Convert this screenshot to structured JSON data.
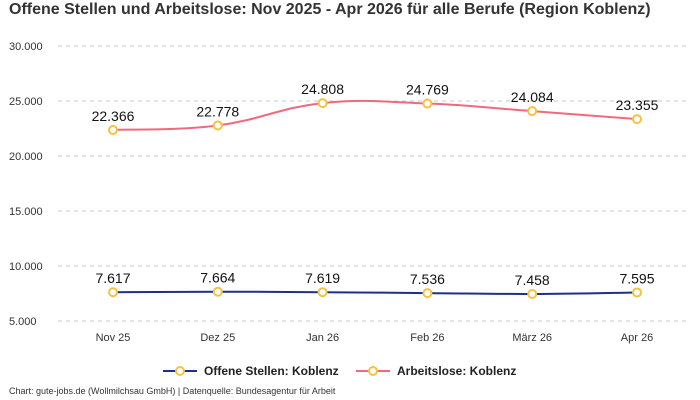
{
  "chart_data": {
    "type": "line",
    "title": "Offene Stellen und Arbeitslose: Nov 2025 - Apr 2026 für alle Berufe (Region Koblenz)",
    "categories": [
      "Nov 25",
      "Dez 25",
      "Jan 26",
      "Feb 26",
      "März 26",
      "Apr 26"
    ],
    "series": [
      {
        "name": "Offene Stellen: Koblenz",
        "values": [
          7617,
          7664,
          7619,
          7536,
          7458,
          7595
        ],
        "labels": [
          "7.617",
          "7.664",
          "7.619",
          "7.536",
          "7.458",
          "7.595"
        ],
        "color": "#1f2f8c"
      },
      {
        "name": "Arbeitslose: Koblenz",
        "values": [
          22366,
          22778,
          24808,
          24769,
          24084,
          23355
        ],
        "labels": [
          "22.366",
          "22.778",
          "24.808",
          "24.769",
          "24.084",
          "23.355"
        ],
        "color": "#f0697f"
      }
    ],
    "yticks": [
      5000,
      10000,
      15000,
      20000,
      25000,
      30000
    ],
    "ytick_labels": [
      "5.000",
      "10.000",
      "15.000",
      "20.000",
      "25.000",
      "30.000"
    ],
    "ylim": [
      5000,
      30000
    ],
    "marker_color": "#f5c242",
    "grid": "horizontal dashed",
    "legend_position": "bottom"
  },
  "source": "Chart: gute-jobs.de (Wollmilchsau GmbH) | Datenquelle: Bundesagentur für Arbeit"
}
